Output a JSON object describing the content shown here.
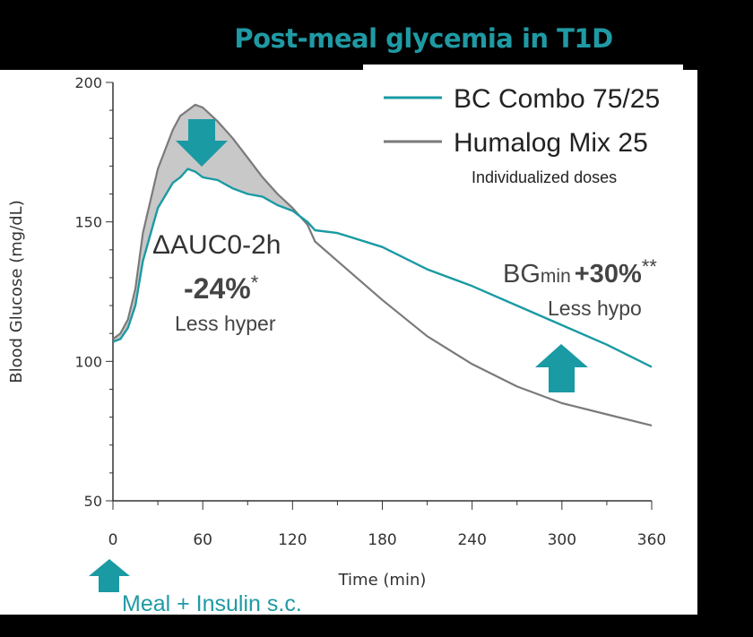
{
  "title": "Post-meal glycemia in T1D",
  "colors": {
    "teal": "#1a9aa3",
    "gray": "#7a7a7a",
    "fill": "#c8c8c8",
    "background": "#000000"
  },
  "chart_data": {
    "type": "line",
    "xlabel": "Time (min)",
    "ylabel": "Blood Glucose (mg/dL)",
    "xlim": [
      0,
      360
    ],
    "ylim": [
      50,
      200
    ],
    "xticks": [
      0,
      60,
      120,
      180,
      240,
      300,
      360
    ],
    "yticks": [
      50,
      100,
      150,
      200
    ],
    "series": [
      {
        "name": "BC Combo 75/25",
        "color": "#1a9aa3",
        "x": [
          0,
          5,
          10,
          15,
          20,
          30,
          40,
          45,
          50,
          55,
          60,
          70,
          80,
          90,
          100,
          110,
          120,
          130,
          135,
          150,
          180,
          210,
          240,
          270,
          300,
          330,
          360
        ],
        "y": [
          107,
          108,
          112,
          120,
          136,
          155,
          164,
          166,
          169,
          168,
          166,
          165,
          162,
          160,
          159,
          156,
          154,
          150,
          147,
          146,
          141,
          133,
          127,
          120,
          113,
          106,
          98
        ]
      },
      {
        "name": "Humalog Mix 25",
        "color": "#7a7a7a",
        "x": [
          0,
          5,
          10,
          15,
          20,
          30,
          40,
          45,
          50,
          55,
          60,
          70,
          80,
          90,
          100,
          110,
          120,
          130,
          135,
          150,
          180,
          210,
          240,
          270,
          300,
          330,
          360
        ],
        "y": [
          108,
          110,
          115,
          126,
          146,
          169,
          183,
          188,
          190,
          192,
          191,
          186,
          180,
          173,
          166,
          160,
          155,
          149,
          143,
          136,
          122,
          109,
          99,
          91,
          85,
          81,
          77
        ]
      }
    ],
    "legend_note": "Individualized doses",
    "annotations": {
      "auc_label": "ΔAUC",
      "auc_sub": "0-2h",
      "auc_value": "-24%",
      "auc_star": "*",
      "hyper_label": "Less hyper",
      "bg_label": "BG",
      "bg_sub": "min",
      "bg_value": "+30%",
      "bg_star": "**",
      "hypo_label": "Less hypo"
    },
    "bottom_caption": "Meal + Insulin s.c.",
    "legend_position": "top-right"
  }
}
